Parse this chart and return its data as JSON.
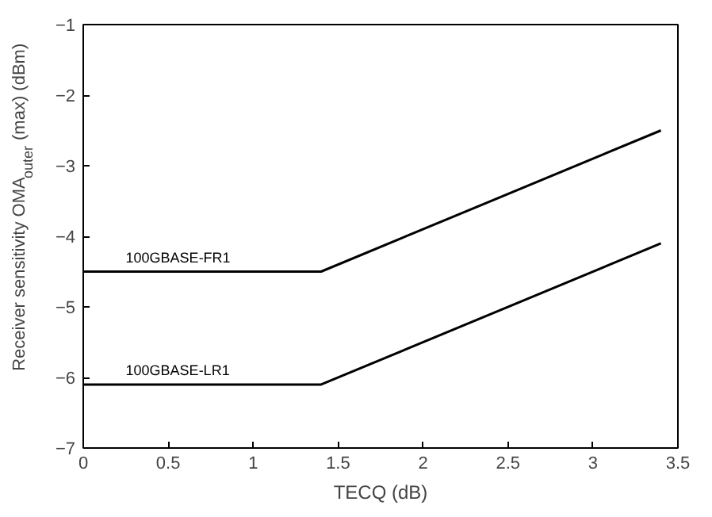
{
  "chart_data": {
    "type": "line",
    "xlabel": "TECQ (dB)",
    "ylabel": "Receiver sensitivity OMA$_{outer}$ (max) (dBm)",
    "x": [
      0,
      1.4,
      3.4
    ],
    "series": [
      {
        "name": "100GBASE-FR1",
        "color": "#000000",
        "values": [
          -4.5,
          -4.5,
          -2.5
        ]
      },
      {
        "name": "100GBASE-LR1",
        "color": "#000000",
        "values": [
          -6.1,
          -6.1,
          -4.1
        ]
      }
    ],
    "xlim": [
      0,
      3.5
    ],
    "ylim": [
      -7,
      -1
    ],
    "xticks": [
      0,
      0.5,
      1,
      1.5,
      2,
      2.5,
      3,
      3.5
    ],
    "yticks": [
      -7,
      -6,
      -5,
      -4,
      -3,
      -2,
      -1
    ],
    "grid": false,
    "line_style": "solid"
  }
}
